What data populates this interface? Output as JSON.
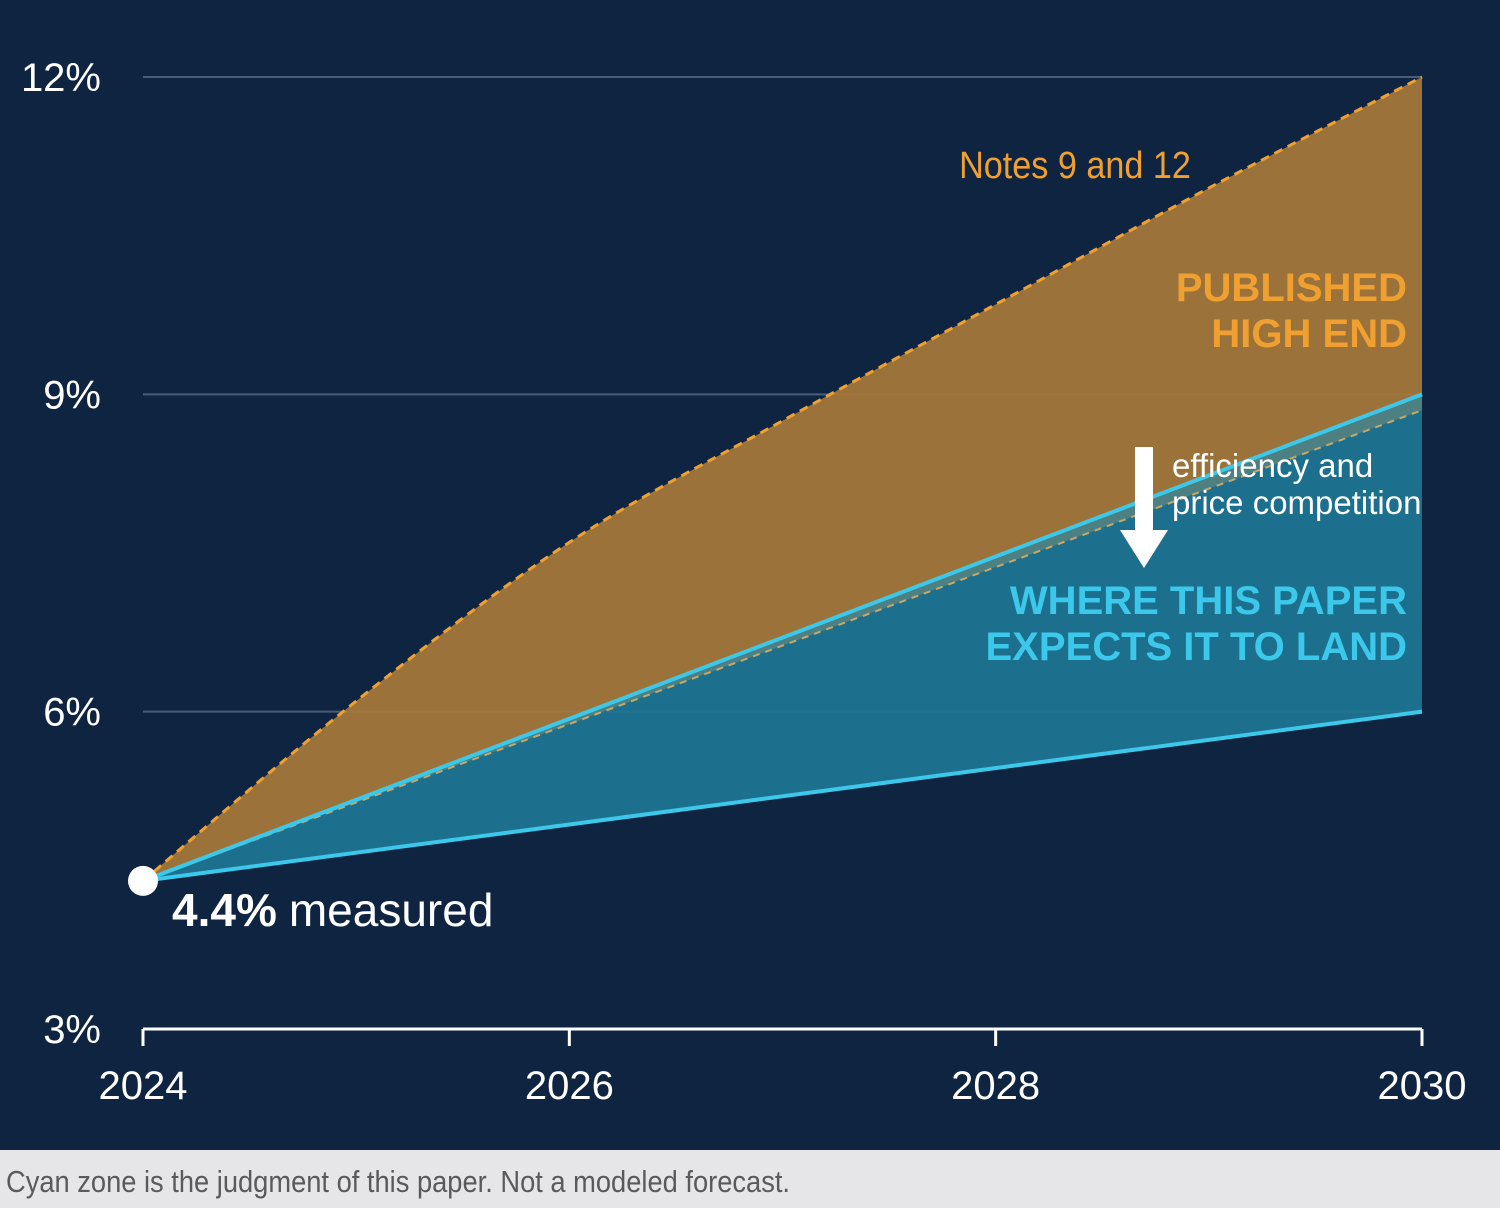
{
  "chart_data": {
    "type": "area",
    "x_ticks": [
      "2024",
      "2026",
      "2028",
      "2030"
    ],
    "y_ticks": [
      "3%",
      "6%",
      "9%",
      "12%"
    ],
    "xlim": [
      2024,
      2030
    ],
    "ylim": [
      3,
      12
    ],
    "grid": true,
    "bands": [
      {
        "name": "PUBLISHED HIGH END",
        "color": "#f0a030",
        "upper": [
          [
            2024,
            4.4
          ],
          [
            2025,
            6.1
          ],
          [
            2026,
            7.6
          ],
          [
            2027,
            8.75
          ],
          [
            2028,
            9.85
          ],
          [
            2029,
            10.95
          ],
          [
            2030,
            12.0
          ]
        ],
        "lower": [
          [
            2024,
            4.4
          ],
          [
            2030,
            9.0
          ]
        ]
      },
      {
        "name": "WHERE THIS PAPER EXPECTS IT TO LAND",
        "color": "#3cc8ea",
        "upper": [
          [
            2024,
            4.4
          ],
          [
            2030,
            9.0
          ]
        ],
        "lower": [
          [
            2024,
            4.4
          ],
          [
            2030,
            6.0
          ]
        ]
      }
    ],
    "start_point": {
      "x": 2024,
      "y": 4.4,
      "value_label": "4.4%",
      "label": "measured"
    },
    "annotations": {
      "notes": "Notes 9 and 12",
      "high_end": [
        "PUBLISHED",
        "HIGH END"
      ],
      "arrow": [
        "efficiency and",
        "price competition"
      ],
      "land": [
        "WHERE THIS PAPER",
        "EXPECTS IT TO LAND"
      ]
    }
  },
  "footer": "Cyan zone is the judgment of this paper. Not a modeled forecast.",
  "colors": {
    "background": "#0f2440",
    "orange": "#f0a030",
    "cyan": "#3cc8ea",
    "white": "#ffffff"
  }
}
